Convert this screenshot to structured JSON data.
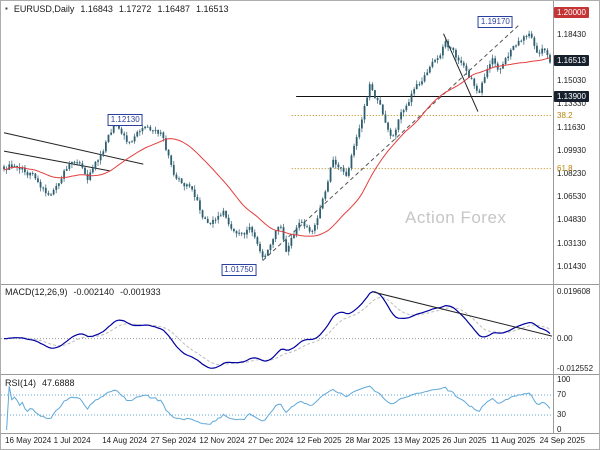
{
  "header": {
    "symbol": "EURUSD,Daily",
    "open": "1.16843",
    "high": "1.17272",
    "low": "1.16487",
    "close": "1.16513"
  },
  "chart_data": {
    "type": "candlestick",
    "symbol": "EURUSD",
    "timeframe": "Daily",
    "x_axis_dates": [
      "16 May 2024",
      "1 Jul 2024",
      "14 Aug 2024",
      "27 Sep 2024",
      "12 Nov 2024",
      "27 Dec 2024",
      "12 Feb 2025",
      "28 Mar 2025",
      "13 May 2025",
      "26 Jun 2025",
      "11 Aug 2025",
      "24 Sep 2025"
    ],
    "price_ylim": [
      1.0025,
      1.206
    ],
    "candle_count": 210,
    "price_anchors": [
      [
        0.0,
        1.087
      ],
      [
        0.02,
        1.0898
      ],
      [
        0.048,
        1.0826
      ],
      [
        0.081,
        1.0682
      ],
      [
        0.1,
        1.0742
      ],
      [
        0.122,
        1.0932
      ],
      [
        0.14,
        1.0885
      ],
      [
        0.152,
        1.0792
      ],
      [
        0.172,
        1.0918
      ],
      [
        0.201,
        1.1178
      ],
      [
        0.216,
        1.1128
      ],
      [
        0.232,
        1.1032
      ],
      [
        0.26,
        1.1192
      ],
      [
        0.288,
        1.1105
      ],
      [
        0.315,
        1.0782
      ],
      [
        0.343,
        1.0722
      ],
      [
        0.374,
        1.0432
      ],
      [
        0.402,
        1.0562
      ],
      [
        0.425,
        1.0382
      ],
      [
        0.45,
        1.0422
      ],
      [
        0.477,
        1.0202
      ],
      [
        0.504,
        1.0478
      ],
      [
        0.518,
        1.0262
      ],
      [
        0.54,
        1.0468
      ],
      [
        0.567,
        1.0402
      ],
      [
        0.602,
        1.0918
      ],
      [
        0.628,
        1.0812
      ],
      [
        0.67,
        1.1478
      ],
      [
        0.687,
        1.1338
      ],
      [
        0.711,
        1.1112
      ],
      [
        0.738,
        1.1348
      ],
      [
        0.772,
        1.1558
      ],
      [
        0.809,
        1.1778
      ],
      [
        0.841,
        1.1618
      ],
      [
        0.87,
        1.1432
      ],
      [
        0.894,
        1.1678
      ],
      [
        0.906,
        1.1602
      ],
      [
        0.921,
        1.1688
      ],
      [
        0.963,
        1.1878
      ],
      [
        0.975,
        1.1712
      ],
      [
        0.988,
        1.1748
      ],
      [
        1.0,
        1.1652
      ]
    ],
    "price_axis": {
      "plain": [
        {
          "text": "1.18430",
          "price": 1.1843
        },
        {
          "text": "1.15030",
          "price": 1.1503
        },
        {
          "text": "1.13330",
          "price": 1.1333
        },
        {
          "text": "1.11630",
          "price": 1.1163
        },
        {
          "text": "1.09930",
          "price": 1.0993
        },
        {
          "text": "1.08230",
          "price": 1.0823
        },
        {
          "text": "1.06530",
          "price": 1.0653
        },
        {
          "text": "1.04830",
          "price": 1.0483
        },
        {
          "text": "1.03130",
          "price": 1.0313
        },
        {
          "text": "1.01430",
          "price": 1.0143
        }
      ],
      "fib": [
        {
          "text": "38.2",
          "price": 1.1251
        },
        {
          "text": "61.8",
          "price": 1.0862
        }
      ],
      "boxes": [
        {
          "text": "1.20000",
          "price": 1.2,
          "style": "red"
        },
        {
          "text": "1.16513",
          "price": 1.16513,
          "style": "dark"
        },
        {
          "text": "1.13900",
          "price": 1.139,
          "style": "dark"
        }
      ]
    },
    "price_flags": [
      {
        "text": "1.19170",
        "t": 0.9,
        "price": 1.1938
      },
      {
        "text": "1.12130",
        "t": 0.222,
        "price": 1.1218
      },
      {
        "text": "1.01750",
        "t": 0.43,
        "price": 1.012
      }
    ],
    "annotations": {
      "trendlines": [
        {
          "x1": 0.0,
          "p1": 1.1125,
          "x2": 0.255,
          "p2": 1.0895
        },
        {
          "x1": 0.0,
          "p1": 1.099,
          "x2": 0.195,
          "p2": 1.0845
        },
        {
          "x1": 0.805,
          "p1": 1.185,
          "x2": 0.868,
          "p2": 1.128
        }
      ],
      "dashed_trendline": {
        "x1": 0.474,
        "p1": 1.019,
        "x2": 0.945,
        "p2": 1.192
      },
      "hline": {
        "price": 1.139,
        "x1": 0.535
      },
      "fib_lines": [
        {
          "price": 1.1251,
          "x1": 0.527
        },
        {
          "price": 1.0862,
          "x1": 0.527
        }
      ],
      "macd_trendline": {
        "end_frac": 0.05
      }
    },
    "indicators": {
      "ma": {
        "type": "sma",
        "period": 30
      },
      "macd": {
        "label": "MACD(12,26,9)",
        "value": "-0.002140",
        "signal_value": "-0.001933",
        "fast": 12,
        "slow": 26,
        "signal": 9,
        "axis": {
          "top": "0.019608",
          "zero": "0.00",
          "bottom": "-0.012552"
        }
      },
      "rsi": {
        "label": "RSI(14)",
        "value": "47.6888",
        "period": 14,
        "axis": [
          "100",
          "70",
          "30",
          "0"
        ],
        "levels": [
          70,
          30
        ]
      }
    },
    "watermark": "Action Forex",
    "colors": {
      "candle": "#2e5f70",
      "ma": "#e43d3d",
      "macd": "#0000a0",
      "macd_signal": "#bdbdbd",
      "rsi": "#5fa8d8",
      "fib": "#b8860b",
      "trend": "#222222",
      "dashed": "#555555",
      "flag": "#2b3f9e",
      "box_dark": "#17212d",
      "box_red": "#c43636",
      "axis_text": "#1a1a1a",
      "watermark": "#c6c6c6",
      "separator": "#9a9a9a"
    }
  }
}
